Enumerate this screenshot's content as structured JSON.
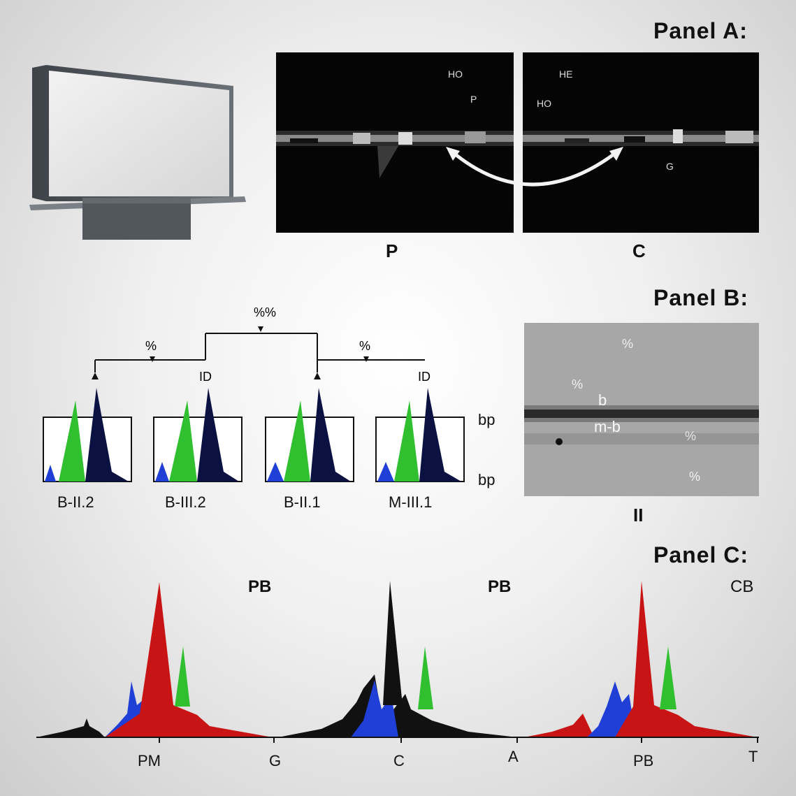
{
  "panel_a": {
    "title": "Panel A:",
    "left_image": {
      "labels": [
        "HO",
        "P"
      ],
      "caption": "P"
    },
    "right_image": {
      "labels": [
        "HE",
        "HO",
        "G"
      ],
      "caption": "C"
    }
  },
  "panel_b": {
    "title": "Panel B:",
    "tree": {
      "root_label": "%%",
      "left_branch_label": "%",
      "right_branch_label": "%",
      "leaf_marks": [
        "ID",
        "ID"
      ]
    },
    "bp_labels": [
      "bp",
      "bp"
    ],
    "samples": [
      "B-II.2",
      "B-III.2",
      "B-II.1",
      "M-III.1"
    ],
    "gel": {
      "labels": [
        "%",
        "%",
        "b",
        "m-b",
        "%",
        "%"
      ],
      "caption": "II"
    }
  },
  "panel_c": {
    "title": "Panel C:",
    "header_labels": [
      "PB",
      "PB",
      "CB"
    ],
    "axis_labels": [
      "PM",
      "G",
      "C",
      "A",
      "PB",
      "T"
    ]
  },
  "colors": {
    "black": "#111111",
    "blue": "#1f3fd6",
    "green": "#2fbf2f",
    "red": "#c81414",
    "navy": "#0b1140"
  }
}
